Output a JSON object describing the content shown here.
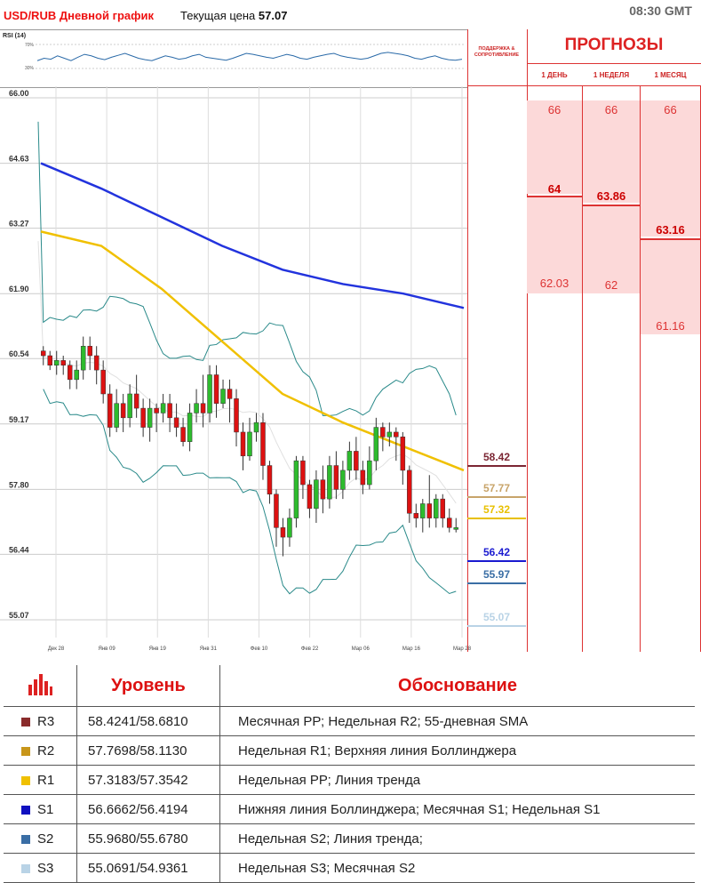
{
  "header": {
    "pair": "USD/RUB Дневной график",
    "price_label": "Текущая цена",
    "price": "57.07",
    "time": "08:30 GMT"
  },
  "rsi": {
    "label": "RSI (14)",
    "upper": "70%",
    "lower": "30%",
    "values": [
      0.45,
      0.5,
      0.48,
      0.55,
      0.5,
      0.45,
      0.52,
      0.58,
      0.55,
      0.5,
      0.47,
      0.52,
      0.56,
      0.6,
      0.55,
      0.5,
      0.47,
      0.45,
      0.5,
      0.55,
      0.52,
      0.48,
      0.5,
      0.55,
      0.58,
      0.52,
      0.5,
      0.48,
      0.46,
      0.5,
      0.55,
      0.6,
      0.58,
      0.55,
      0.52,
      0.5,
      0.54,
      0.58,
      0.55,
      0.5,
      0.48,
      0.52,
      0.55,
      0.58,
      0.6,
      0.55,
      0.52,
      0.5,
      0.48,
      0.5,
      0.55,
      0.6,
      0.62,
      0.6,
      0.58,
      0.55,
      0.5,
      0.48,
      0.52,
      0.55,
      0.5,
      0.47,
      0.46,
      0.48
    ]
  },
  "side": {
    "sr_title": "ПОДДЕРЖКА & СОПРОТИВЛЕНИЕ",
    "forecast_title": "ПРОГНОЗЫ"
  },
  "forecasts": [
    {
      "head": "1 ДЕНЬ",
      "top": "66",
      "mid": "64",
      "low": "62.03"
    },
    {
      "head": "1 НЕДЕЛЯ",
      "top": "66",
      "mid": "63.86",
      "low": "62"
    },
    {
      "head": "1 МЕСЯЦ",
      "top": "66",
      "mid": "63.16",
      "low": "61.16"
    }
  ],
  "chart_data": {
    "type": "candlestick",
    "ylim": [
      55.07,
      66.0
    ],
    "yticks": [
      "66.00",
      "64.63",
      "63.27",
      "61.90",
      "60.54",
      "59.17",
      "57.80",
      "56.44",
      "55.07"
    ],
    "xticks": [
      "Дек 28",
      "Янв 09",
      "Янв 19",
      "Янв 31",
      "Фев 10",
      "Фев 22",
      "Мар 06",
      "Мар 16",
      "Мар 28"
    ],
    "candles": [
      [
        60.7,
        60.6,
        60.8,
        60.4
      ],
      [
        60.6,
        60.4,
        60.7,
        60.3
      ],
      [
        60.4,
        60.5,
        60.7,
        60.2
      ],
      [
        60.5,
        60.4,
        60.6,
        60.2
      ],
      [
        60.4,
        60.1,
        60.5,
        59.9
      ],
      [
        60.1,
        60.3,
        60.5,
        59.9
      ],
      [
        60.3,
        60.8,
        61.0,
        60.1
      ],
      [
        60.8,
        60.6,
        61.0,
        60.3
      ],
      [
        60.6,
        60.3,
        60.8,
        60.0
      ],
      [
        60.3,
        59.8,
        60.5,
        59.6
      ],
      [
        59.8,
        59.1,
        60.0,
        58.9
      ],
      [
        59.1,
        59.6,
        59.9,
        59.0
      ],
      [
        59.6,
        59.3,
        59.8,
        59.0
      ],
      [
        59.3,
        59.8,
        60.0,
        59.1
      ],
      [
        59.8,
        59.5,
        60.2,
        59.3
      ],
      [
        59.5,
        59.1,
        59.7,
        58.9
      ],
      [
        59.1,
        59.5,
        59.7,
        58.8
      ],
      [
        59.5,
        59.4,
        59.6,
        59.0
      ],
      [
        59.4,
        59.6,
        59.8,
        59.2
      ],
      [
        59.6,
        59.3,
        59.8,
        59.0
      ],
      [
        59.3,
        59.1,
        59.6,
        58.9
      ],
      [
        59.1,
        58.8,
        59.3,
        58.7
      ],
      [
        58.8,
        59.4,
        59.6,
        58.6
      ],
      [
        59.4,
        59.6,
        59.9,
        59.2
      ],
      [
        59.6,
        59.4,
        60.2,
        59.1
      ],
      [
        59.4,
        60.2,
        60.4,
        59.2
      ],
      [
        60.2,
        59.6,
        60.4,
        59.3
      ],
      [
        59.6,
        59.9,
        60.1,
        59.5
      ],
      [
        59.9,
        59.7,
        60.1,
        59.2
      ],
      [
        59.7,
        59.0,
        59.9,
        58.7
      ],
      [
        59.0,
        58.5,
        59.2,
        58.2
      ],
      [
        58.5,
        59.0,
        59.3,
        58.4
      ],
      [
        59.0,
        59.2,
        59.4,
        58.8
      ],
      [
        59.2,
        58.3,
        59.4,
        58.0
      ],
      [
        58.3,
        57.7,
        58.4,
        57.5
      ],
      [
        57.7,
        57.0,
        57.8,
        56.6
      ],
      [
        57.0,
        56.8,
        57.2,
        56.4
      ],
      [
        56.8,
        57.2,
        57.4,
        56.6
      ],
      [
        57.2,
        58.4,
        58.5,
        57.0
      ],
      [
        58.4,
        57.9,
        58.5,
        57.6
      ],
      [
        57.9,
        57.4,
        58.0,
        57.2
      ],
      [
        57.4,
        58.0,
        58.2,
        57.1
      ],
      [
        58.0,
        57.6,
        58.3,
        57.3
      ],
      [
        57.6,
        58.3,
        58.5,
        57.4
      ],
      [
        58.3,
        57.8,
        58.6,
        57.6
      ],
      [
        57.8,
        58.2,
        58.4,
        57.6
      ],
      [
        58.2,
        58.6,
        58.8,
        58.0
      ],
      [
        58.6,
        58.2,
        58.9,
        58.0
      ],
      [
        58.2,
        57.9,
        58.4,
        57.7
      ],
      [
        57.9,
        58.4,
        58.7,
        57.8
      ],
      [
        58.4,
        59.1,
        59.3,
        58.2
      ],
      [
        59.1,
        58.9,
        59.2,
        58.6
      ],
      [
        58.9,
        59.0,
        59.2,
        58.7
      ],
      [
        59.0,
        58.9,
        59.1,
        58.4
      ],
      [
        58.9,
        58.2,
        59.0,
        57.9
      ],
      [
        58.2,
        57.3,
        58.3,
        57.1
      ],
      [
        57.3,
        57.2,
        57.5,
        57.0
      ],
      [
        57.2,
        57.5,
        57.6,
        56.9
      ],
      [
        57.5,
        57.2,
        58.1,
        57.0
      ],
      [
        57.2,
        57.6,
        57.7,
        57.0
      ],
      [
        57.6,
        57.2,
        57.7,
        57.0
      ],
      [
        57.2,
        57.0,
        57.4,
        56.9
      ],
      [
        57.0,
        57.0,
        57.2,
        56.9
      ]
    ],
    "sma_blue": [
      64.63,
      64.1,
      63.5,
      62.9,
      62.4,
      62.1,
      61.9,
      61.6
    ],
    "sma_yellow": [
      63.2,
      62.9,
      62.0,
      60.9,
      59.8,
      59.2,
      58.7,
      58.2
    ],
    "levels": [
      {
        "name": "R3",
        "value": "58.42",
        "color": "#7b2633"
      },
      {
        "name": "R2",
        "value": "57.77",
        "color": "#c8a46a"
      },
      {
        "name": "R1",
        "value": "57.32",
        "color": "#e8c000"
      },
      {
        "name": "S1",
        "value": "56.42",
        "color": "#1a1ad0"
      },
      {
        "name": "S2",
        "value": "55.97",
        "color": "#3a6ea5"
      },
      {
        "name": "S3",
        "value": "55.07",
        "color": "#b9d3e6"
      }
    ]
  },
  "table": {
    "col_level": "Уровень",
    "col_reason": "Обоснование",
    "rows": [
      {
        "name": "R3",
        "color": "#8a2b2b",
        "range": "58.4241/58.6810",
        "reason": "Месячная РР; Недельная R2; 55-дневная SMA"
      },
      {
        "name": "R2",
        "color": "#c8961a",
        "range": "57.7698/58.1130",
        "reason": "Недельная R1; Верхняя линия Боллинджера"
      },
      {
        "name": "R1",
        "color": "#f0c000",
        "range": "57.3183/57.3542",
        "reason": "Недельная РР; Линия тренда"
      },
      {
        "name": "S1",
        "color": "#1010c0",
        "range": "56.6662/56.4194",
        "reason": "Нижняя линия Боллинджера; Месячная S1; Недельная S1"
      },
      {
        "name": "S2",
        "color": "#3a6ea5",
        "range": "55.9680/55.6780",
        "reason": "Недельная S2; Линия тренда;"
      },
      {
        "name": "S3",
        "color": "#b9d3e6",
        "range": "55.0691/54.9361",
        "reason": "Недельная S3; Месячная S2"
      }
    ]
  }
}
